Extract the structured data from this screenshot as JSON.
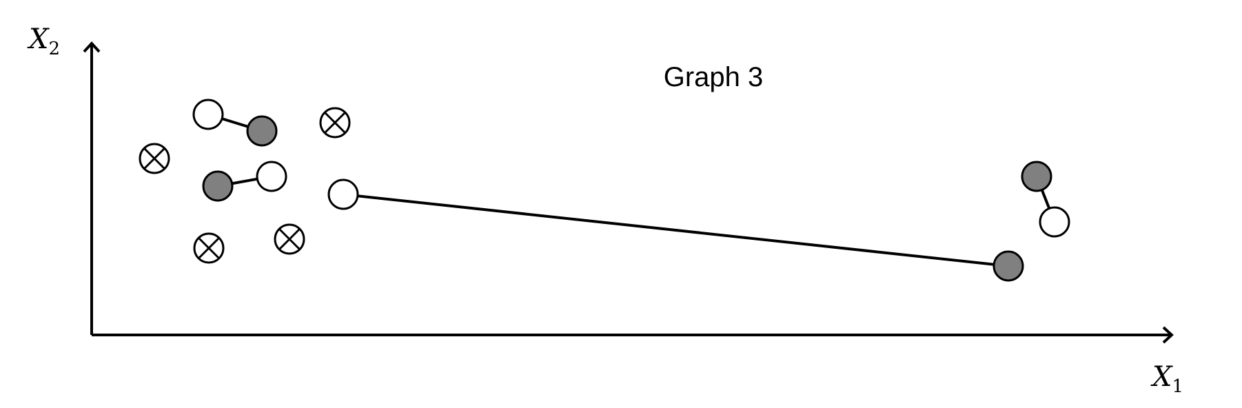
{
  "title": "Graph 3",
  "axes": {
    "x": {
      "symbol": "X",
      "subscript": "1"
    },
    "y": {
      "symbol": "X",
      "subscript": "2"
    }
  },
  "colors": {
    "filled_node": "#808080",
    "open_node": "#ffffff",
    "stroke": "#000000"
  },
  "node_types": [
    "open",
    "filled",
    "crossed"
  ],
  "edges": [
    {
      "from": "open-1",
      "to": "filled-1"
    },
    {
      "from": "filled-2",
      "to": "open-2"
    },
    {
      "from": "open-3",
      "to": "filled-3"
    },
    {
      "from": "filled-4",
      "to": "open-4"
    }
  ]
}
